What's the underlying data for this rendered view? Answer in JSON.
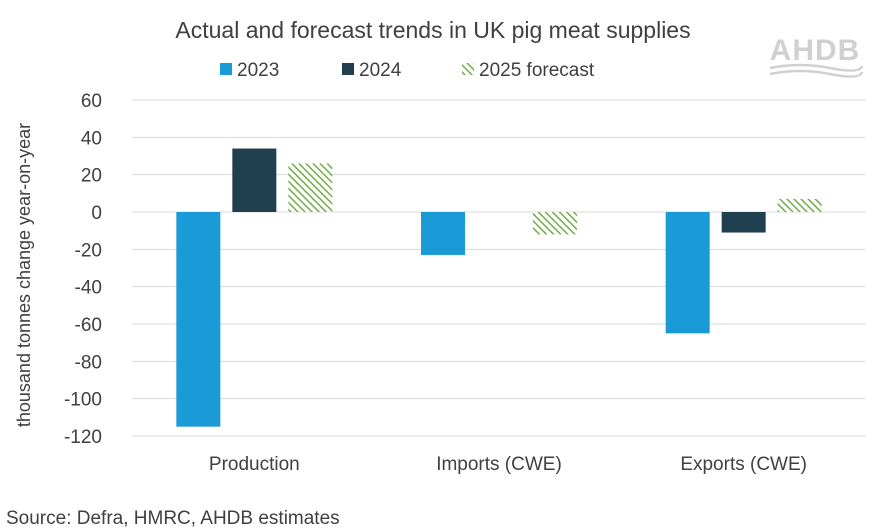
{
  "chart_data": {
    "type": "bar",
    "title": "Actual and forecast trends in UK pig meat supplies",
    "xlabel": "",
    "ylabel": "thousand tonnes change year-on-year",
    "ylim": [
      -120,
      60
    ],
    "yticks": [
      60,
      40,
      20,
      0,
      -20,
      -40,
      -60,
      -80,
      -100,
      -120
    ],
    "ytick_labels": [
      "60",
      "40",
      "20",
      "0",
      "-20",
      "-40",
      "-60",
      "-80",
      "-100",
      "-120"
    ],
    "grid": true,
    "legend_position": "top",
    "categories": [
      "Production",
      "Imports (CWE)",
      "Exports (CWE)"
    ],
    "series": [
      {
        "name": "2023",
        "values": [
          -115,
          -23,
          -65
        ],
        "color": "#1a9ad6",
        "pattern": "solid"
      },
      {
        "name": "2024",
        "values": [
          34,
          0,
          -11
        ],
        "color": "#203f4f",
        "pattern": "solid"
      },
      {
        "name": "2025 forecast",
        "values": [
          26,
          -12,
          7
        ],
        "color": "#70ad47",
        "pattern": "hatched"
      }
    ]
  },
  "source": "Source: Defra, HMRC, AHDB estimates",
  "logo_text": "AHDB"
}
